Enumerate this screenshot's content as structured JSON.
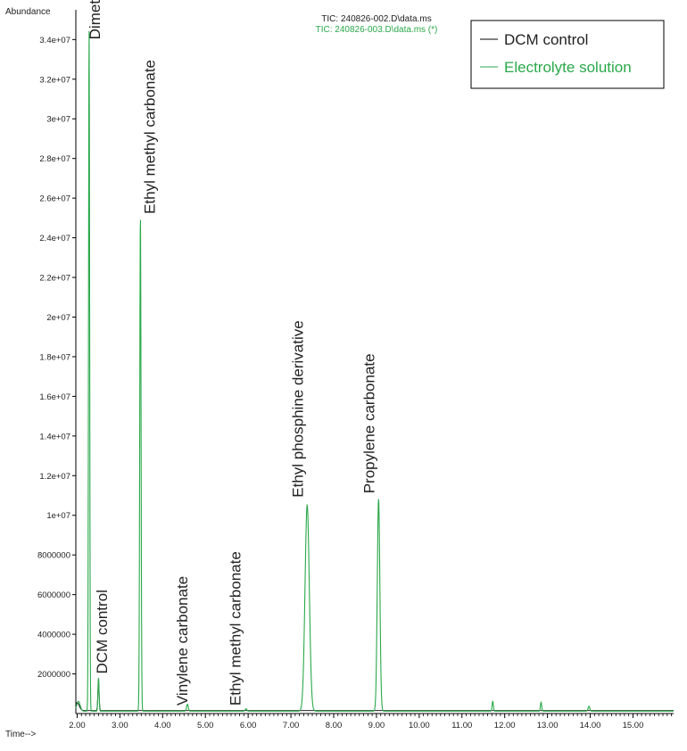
{
  "header": {
    "y_axis_title": "Abundance",
    "x_axis_title": "Time-->",
    "file_line_1": "TIC: 240826-002.D\\data.ms",
    "file_line_2": "TIC: 240826-003.D\\data.ms (*)"
  },
  "legend": {
    "position": "top-right",
    "items": [
      {
        "label": "DCM control",
        "color": "#000000"
      },
      {
        "label": "Electrolyte solution",
        "color": "#2aa84a"
      }
    ]
  },
  "colors": {
    "dcm_line": "#000000",
    "electrolyte_line": "#2aa84a",
    "file_line_2": "#2aa84a",
    "axis": "#000000",
    "text": "#222222"
  },
  "chart_data": {
    "type": "line",
    "xlabel": "Time-->",
    "ylabel": "Abundance",
    "xlim": [
      1.97,
      15.95
    ],
    "ylim": [
      0,
      35500000
    ],
    "grid": false,
    "x_ticks": [
      2.0,
      3.0,
      4.0,
      5.0,
      6.0,
      7.0,
      8.0,
      9.0,
      10.0,
      11.0,
      12.0,
      13.0,
      14.0,
      15.0
    ],
    "x_tick_labels": [
      "2.00",
      "3.00",
      "4.00",
      "5.00",
      "6.00",
      "7.00",
      "8.00",
      "9.00",
      "10.00",
      "11.00",
      "12.00",
      "13.00",
      "14.00",
      "15.00"
    ],
    "y_ticks": [
      2000000,
      4000000,
      6000000,
      8000000,
      10000000,
      12000000,
      14000000,
      16000000,
      18000000,
      20000000,
      22000000,
      24000000,
      26000000,
      28000000,
      30000000,
      32000000,
      34000000
    ],
    "y_tick_labels": [
      "2000000",
      "4000000",
      "6000000",
      "8000000",
      "1e+07",
      "1.2e+07",
      "1.4e+07",
      "1.6e+07",
      "1.8e+07",
      "2e+07",
      "2.2e+07",
      "2.4e+07",
      "2.6e+07",
      "2.8e+07",
      "3e+07",
      "3.2e+07",
      "3.4e+07"
    ],
    "series": [
      {
        "name": "DCM control",
        "color": "#000000",
        "baseline": 150000,
        "peaks": [
          {
            "x": 2.0,
            "height": 400000,
            "width": 0.05
          },
          {
            "x": 2.5,
            "height": 1500000,
            "width": 0.015
          }
        ]
      },
      {
        "name": "Electrolyte solution",
        "color": "#2aa84a",
        "baseline": 120000,
        "peaks": [
          {
            "x": 2.03,
            "height": 500000,
            "width": 0.04
          },
          {
            "x": 2.28,
            "height": 34500000,
            "width": 0.013
          },
          {
            "x": 2.5,
            "height": 1700000,
            "width": 0.013
          },
          {
            "x": 3.48,
            "height": 25100000,
            "width": 0.015
          },
          {
            "x": 4.58,
            "height": 350000,
            "width": 0.02
          },
          {
            "x": 5.95,
            "height": 120000,
            "width": 0.02
          },
          {
            "x": 7.38,
            "height": 10400000,
            "width": 0.05
          },
          {
            "x": 9.05,
            "height": 10700000,
            "width": 0.03
          },
          {
            "x": 11.72,
            "height": 500000,
            "width": 0.015
          },
          {
            "x": 12.85,
            "height": 450000,
            "width": 0.015
          },
          {
            "x": 13.97,
            "height": 250000,
            "width": 0.02
          }
        ]
      }
    ],
    "annotations": [
      {
        "text": "Dimethyl carbonate",
        "x": 2.53,
        "y": 34000000
      },
      {
        "text": "DCM control",
        "x": 2.7,
        "y": 2000000
      },
      {
        "text": "Ethyl methyl carbonate",
        "x": 3.82,
        "y": 25200000
      },
      {
        "text": "Vinylene carbonate",
        "x": 4.58,
        "y": 400000
      },
      {
        "text": "Ethyl methyl carbonate",
        "x": 5.82,
        "y": 400000
      },
      {
        "text": "Ethyl phosphine derivative",
        "x": 7.28,
        "y": 10900000
      },
      {
        "text": "Propylene carbonate",
        "x": 8.95,
        "y": 11100000
      }
    ]
  }
}
